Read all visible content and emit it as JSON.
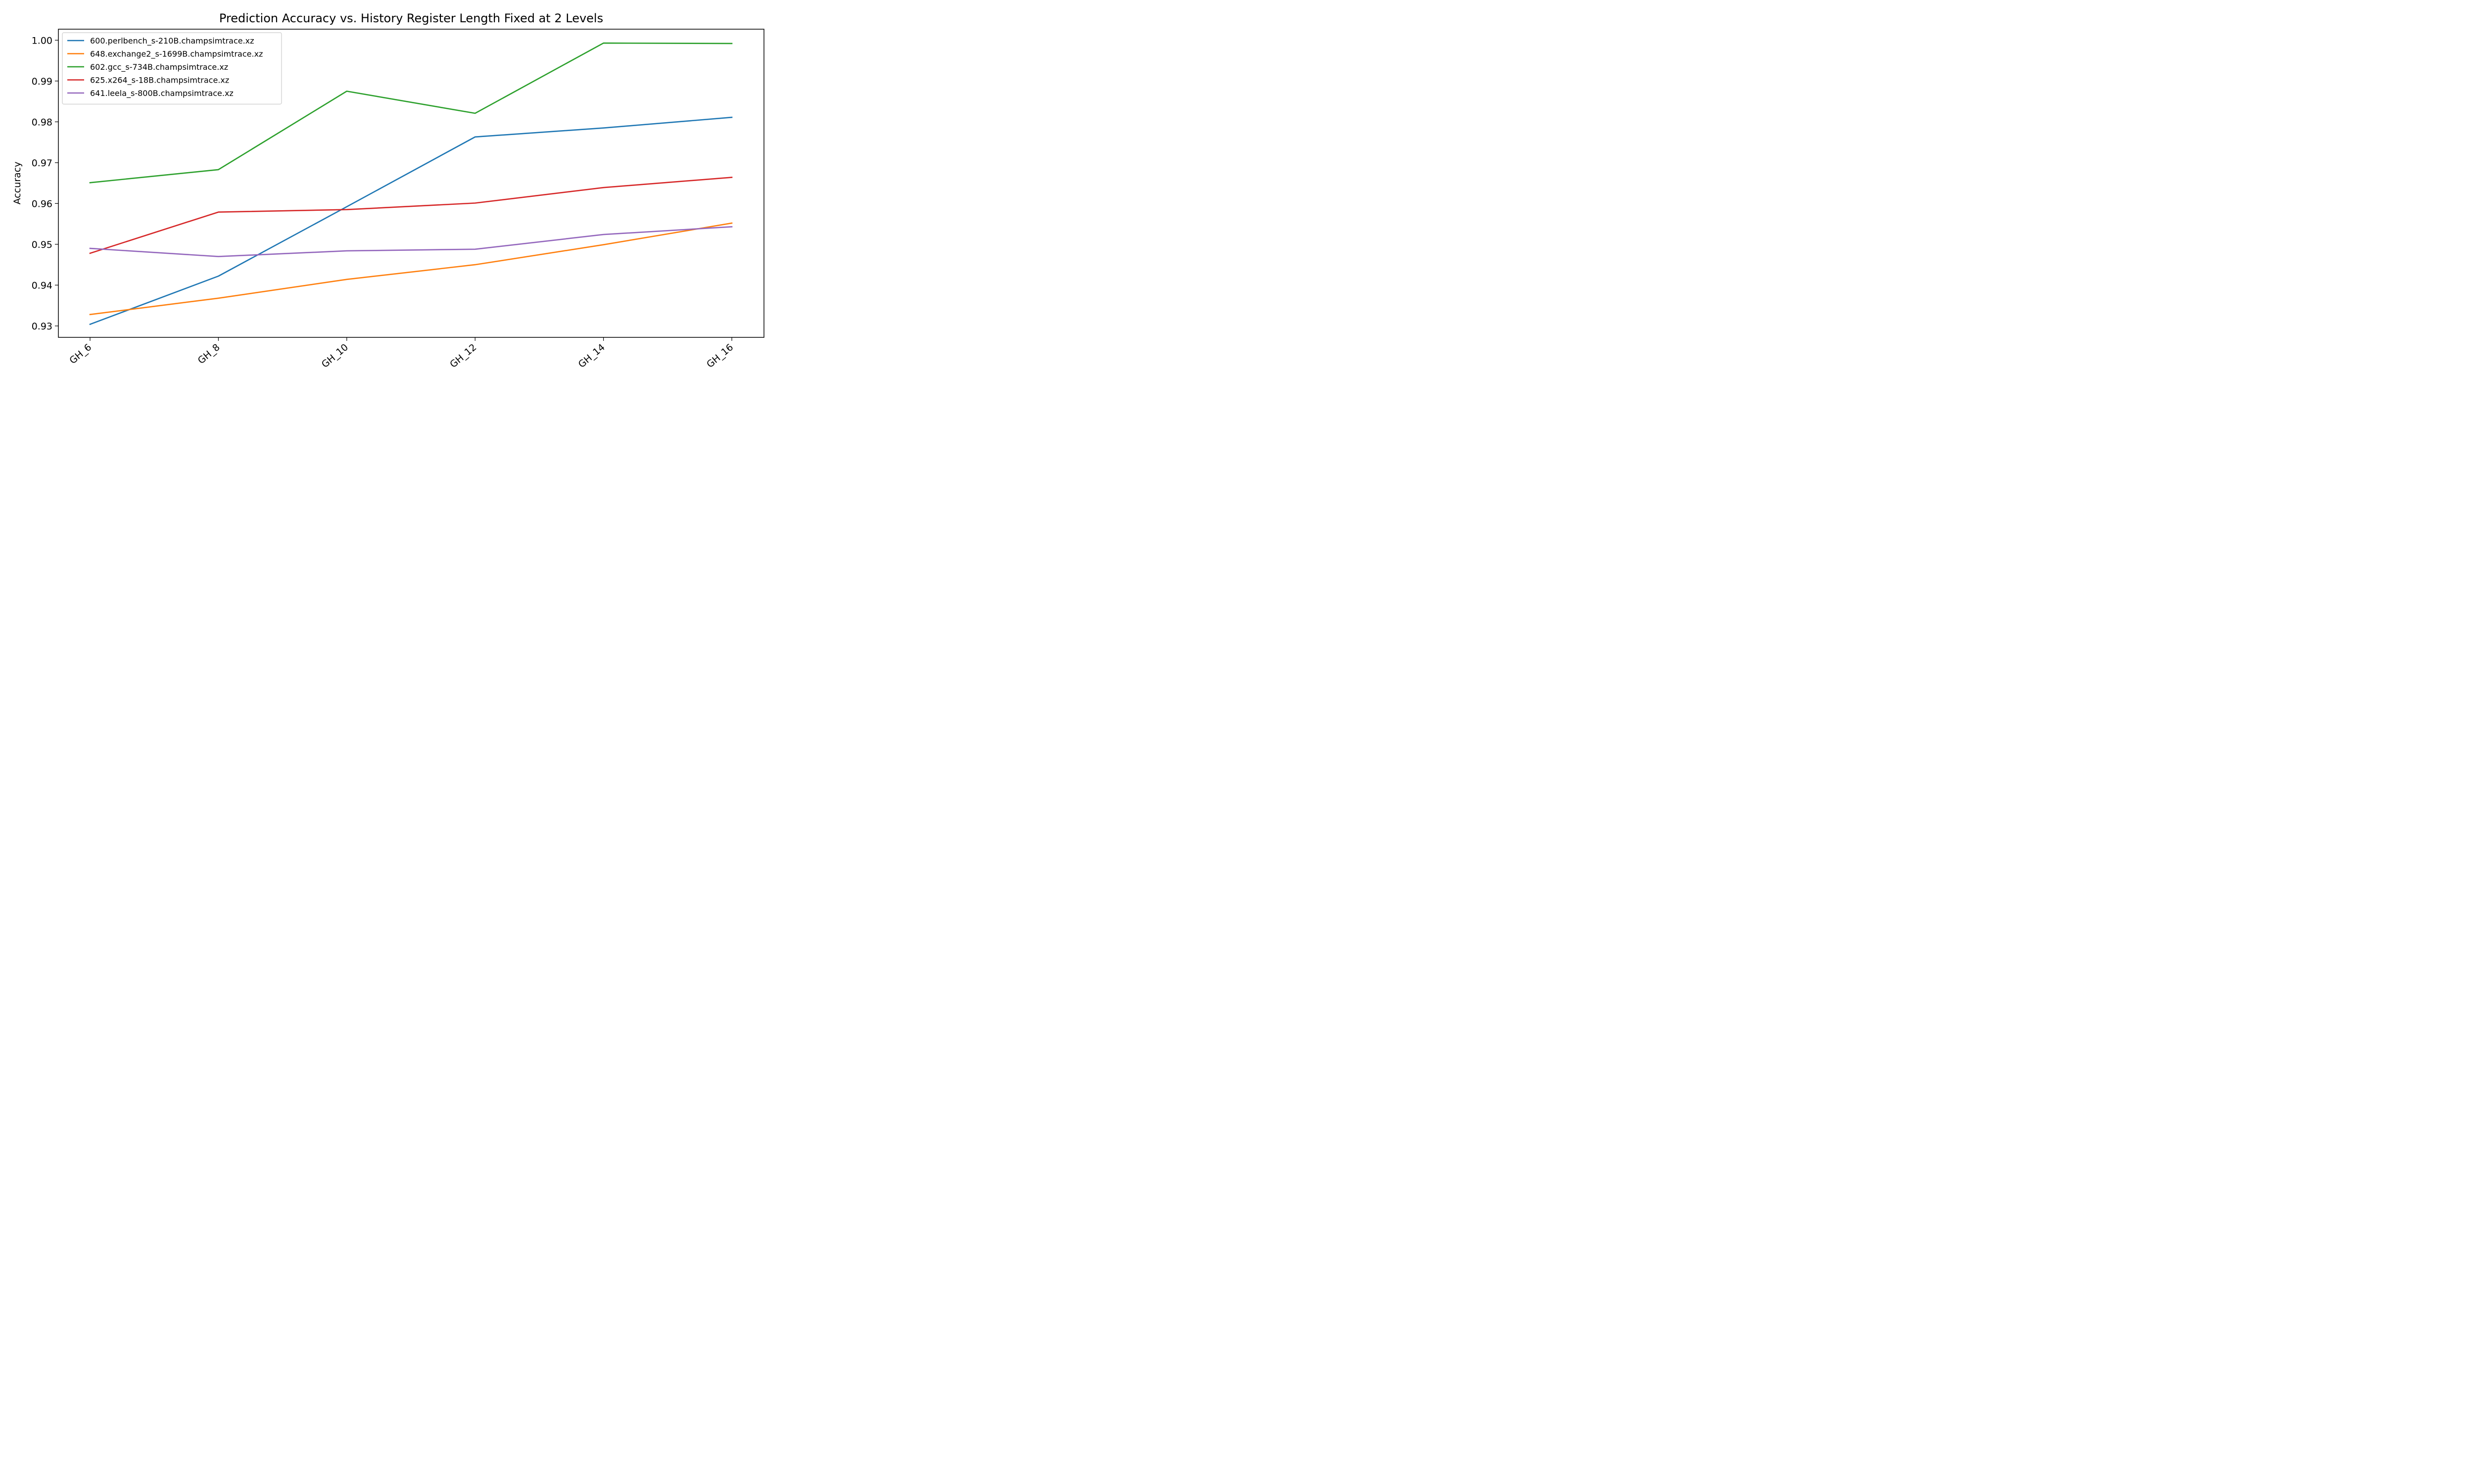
{
  "chart_data": {
    "type": "line",
    "title": "Prediction Accuracy vs. History Register Length Fixed at 2 Levels",
    "xlabel": "",
    "ylabel": "Accuracy",
    "categories": [
      "GH_6",
      "GH_8",
      "GH_10",
      "GH_12",
      "GH_14",
      "GH_16"
    ],
    "ylim": [
      0.9272,
      1.0027
    ],
    "yticks": [
      0.93,
      0.94,
      0.95,
      0.96,
      0.97,
      0.98,
      0.99,
      1.0
    ],
    "ytick_labels": [
      "0.93",
      "0.94",
      "0.95",
      "0.96",
      "0.97",
      "0.98",
      "0.99",
      "1.00"
    ],
    "grid": false,
    "legend_position": "top-left",
    "series": [
      {
        "name": "600.perlbench_s-210B.champsimtrace.xz",
        "color": "#1f77b4",
        "values": [
          0.9304,
          0.9422,
          0.9592,
          0.9763,
          0.9785,
          0.9811
        ]
      },
      {
        "name": "648.exchange2_s-1699B.champsimtrace.xz",
        "color": "#ff7f0e",
        "values": [
          0.9328,
          0.9368,
          0.9414,
          0.945,
          0.9499,
          0.9552
        ]
      },
      {
        "name": "602.gcc_s-734B.champsimtrace.xz",
        "color": "#2ca02c",
        "values": [
          0.9651,
          0.9683,
          0.9875,
          0.9821,
          0.9993,
          0.9992
        ]
      },
      {
        "name": "625.x264_s-18B.champsimtrace.xz",
        "color": "#d62728",
        "values": [
          0.9478,
          0.9579,
          0.9585,
          0.9601,
          0.9639,
          0.9664
        ]
      },
      {
        "name": "641.leela_s-800B.champsimtrace.xz",
        "color": "#9467bd",
        "values": [
          0.949,
          0.947,
          0.9484,
          0.9488,
          0.9524,
          0.9543
        ]
      }
    ]
  }
}
